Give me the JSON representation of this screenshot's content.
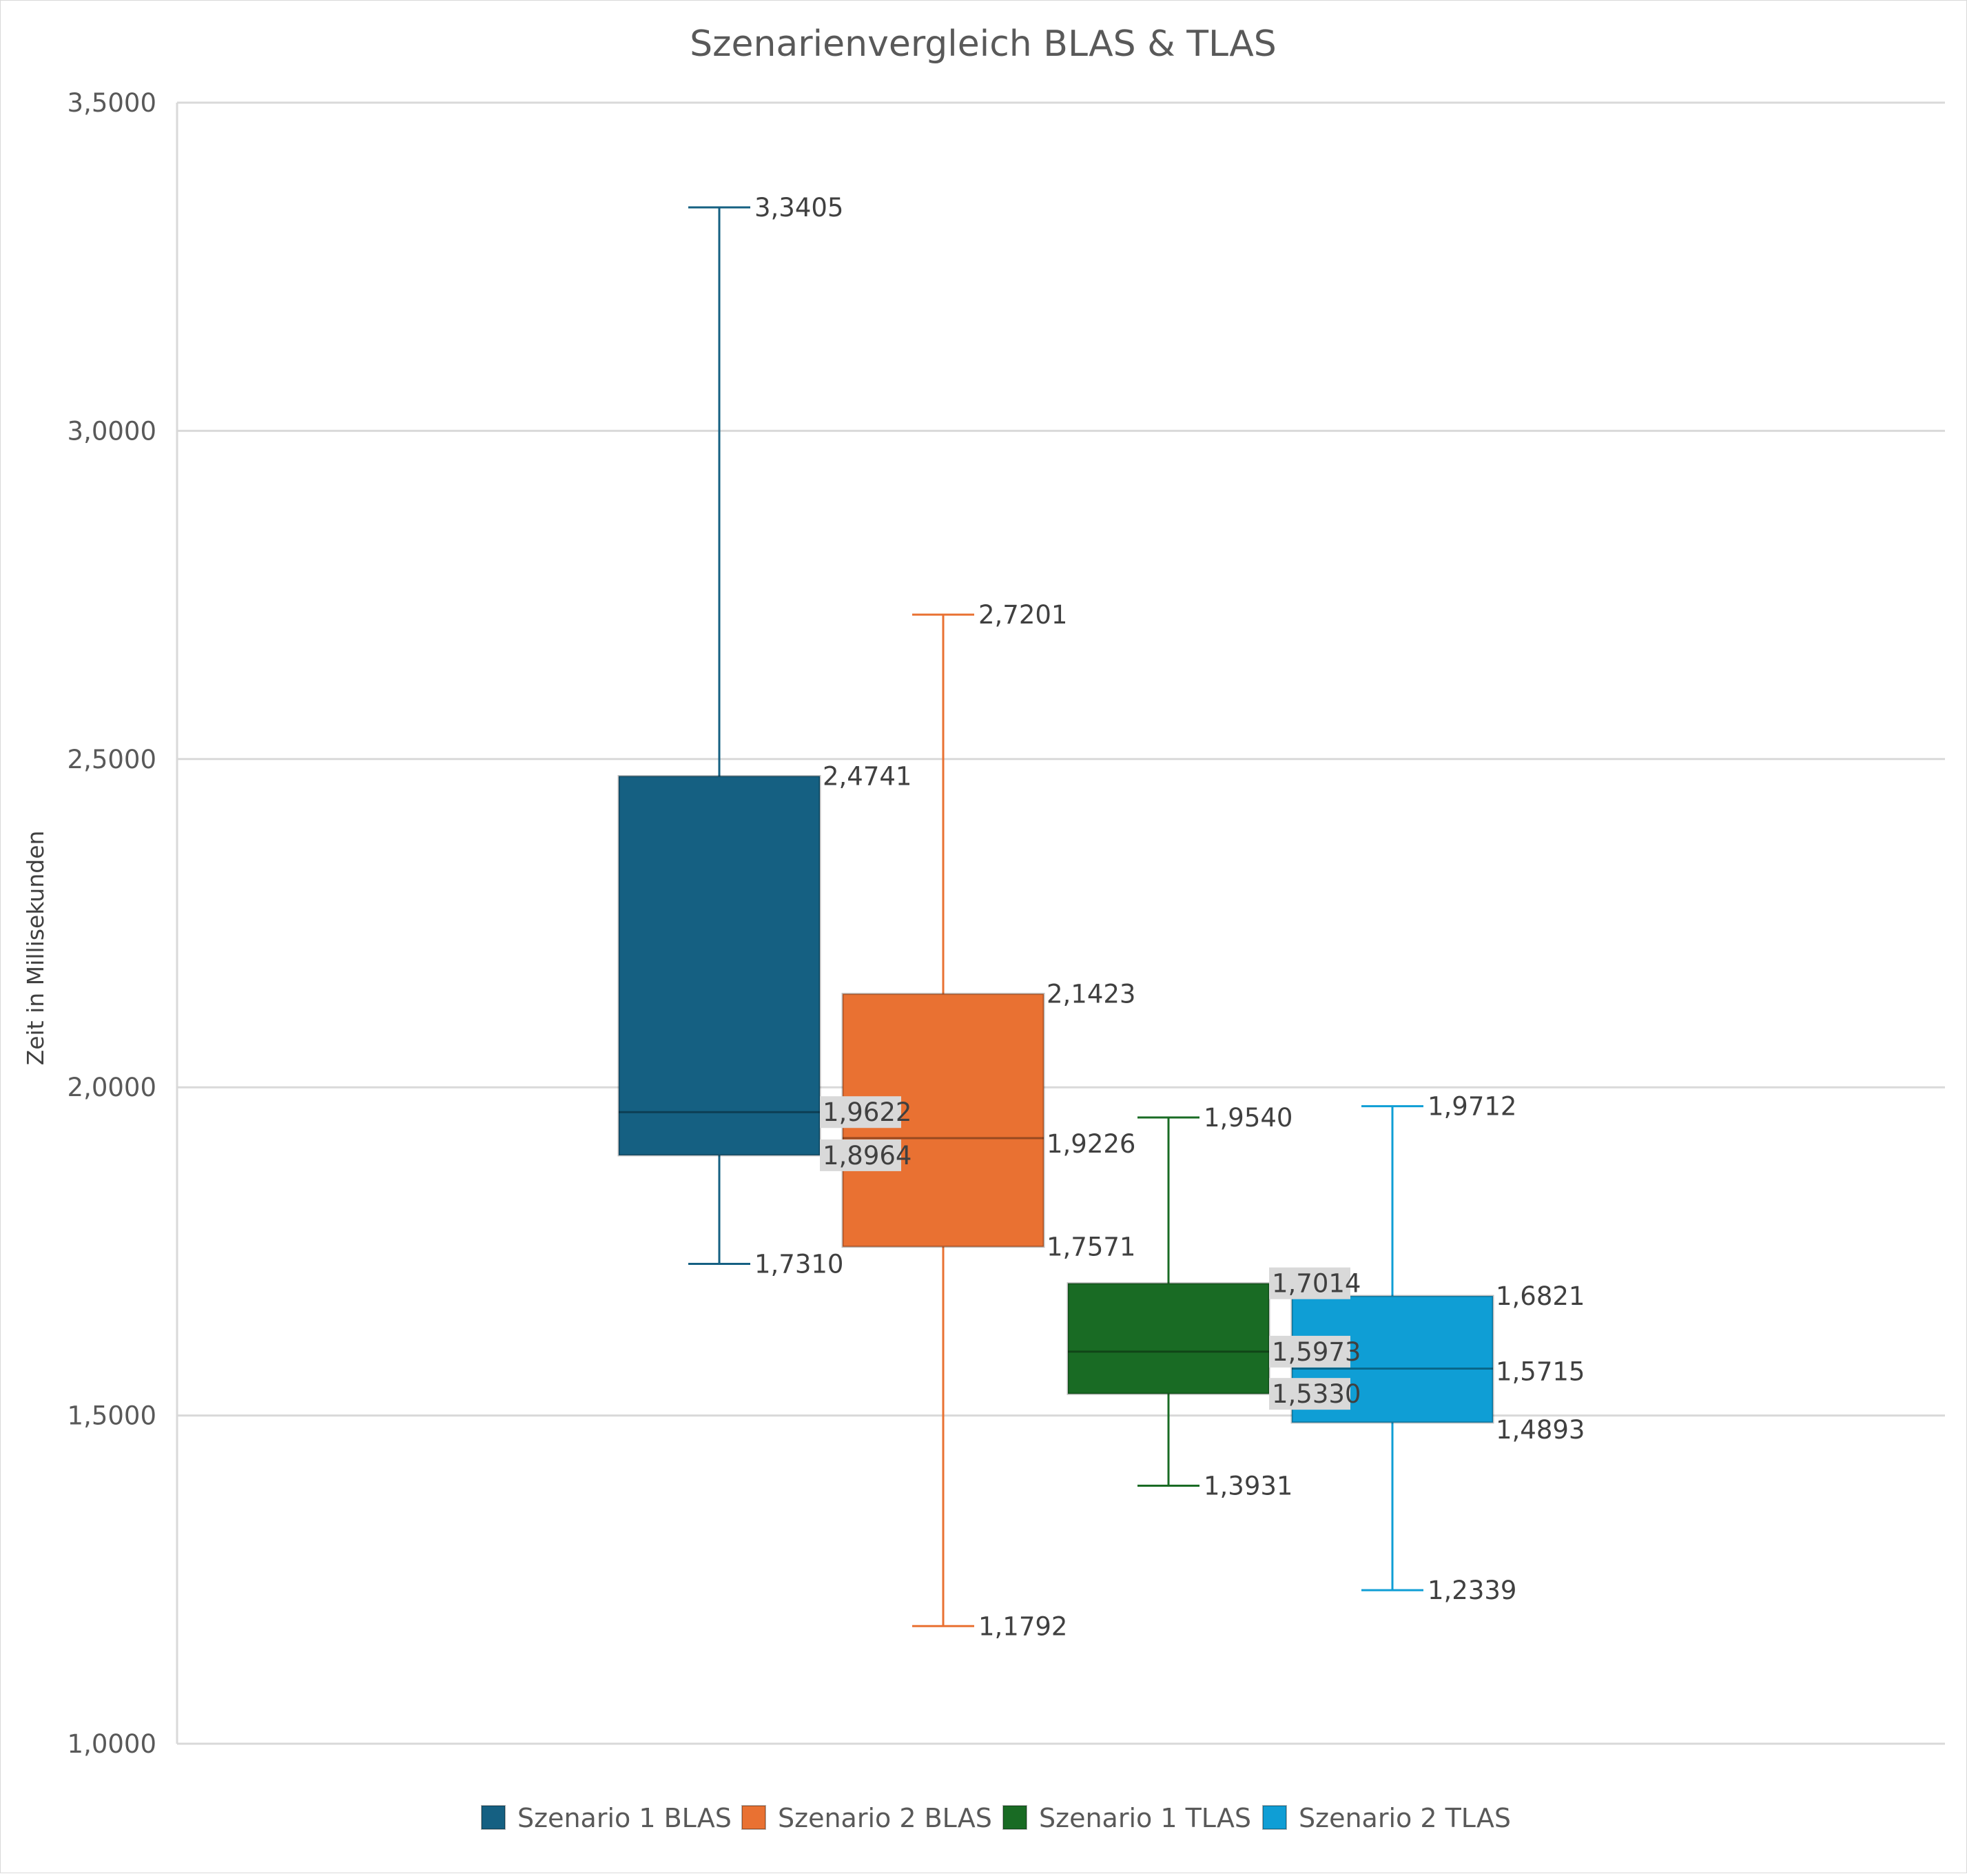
{
  "chart_data": {
    "type": "boxplot",
    "title": "Szenarienvergleich BLAS & TLAS",
    "xlabel": "",
    "ylabel": "Zeit in Millisekunden",
    "ylim": [
      1.0,
      3.5
    ],
    "yticks": [
      "1,0000",
      "1,5000",
      "2,0000",
      "2,5000",
      "3,0000",
      "3,5000"
    ],
    "grid": true,
    "legend_position": "bottom",
    "series": [
      {
        "name": "Szenario 1 BLAS",
        "color": "#156082",
        "min": 1.731,
        "q1": 1.8964,
        "median": 1.9622,
        "q3": 2.4741,
        "max": 3.3405,
        "labels": {
          "min": "1,7310",
          "q1": "1,8964",
          "median": "1,9622",
          "q3": "2,4741",
          "max": "3,3405"
        }
      },
      {
        "name": "Szenario 2 BLAS",
        "color": "#E97132",
        "min": 1.1792,
        "q1": 1.7571,
        "median": 1.9226,
        "q3": 2.1423,
        "max": 2.7201,
        "labels": {
          "min": "1,1792",
          "q1": "1,7571",
          "median": "1,9226",
          "q3": "2,1423",
          "max": "2,7201"
        }
      },
      {
        "name": "Szenario 1 TLAS",
        "color": "#196B24",
        "min": 1.3931,
        "q1": 1.533,
        "median": 1.5973,
        "q3": 1.7014,
        "max": 1.954,
        "labels": {
          "min": "1,3931",
          "q1": "1,5330",
          "median": "1,5973",
          "q3": "1,7014",
          "max": "1,9540"
        }
      },
      {
        "name": "Szenario 2 TLAS",
        "color": "#0F9ED5",
        "min": 1.2339,
        "q1": 1.4893,
        "median": 1.5715,
        "q3": 1.6821,
        "max": 1.9712,
        "labels": {
          "min": "1,2339",
          "q1": "1,4893",
          "median": "1,5715",
          "q3": "1,6821",
          "max": "1,9712"
        }
      }
    ]
  }
}
